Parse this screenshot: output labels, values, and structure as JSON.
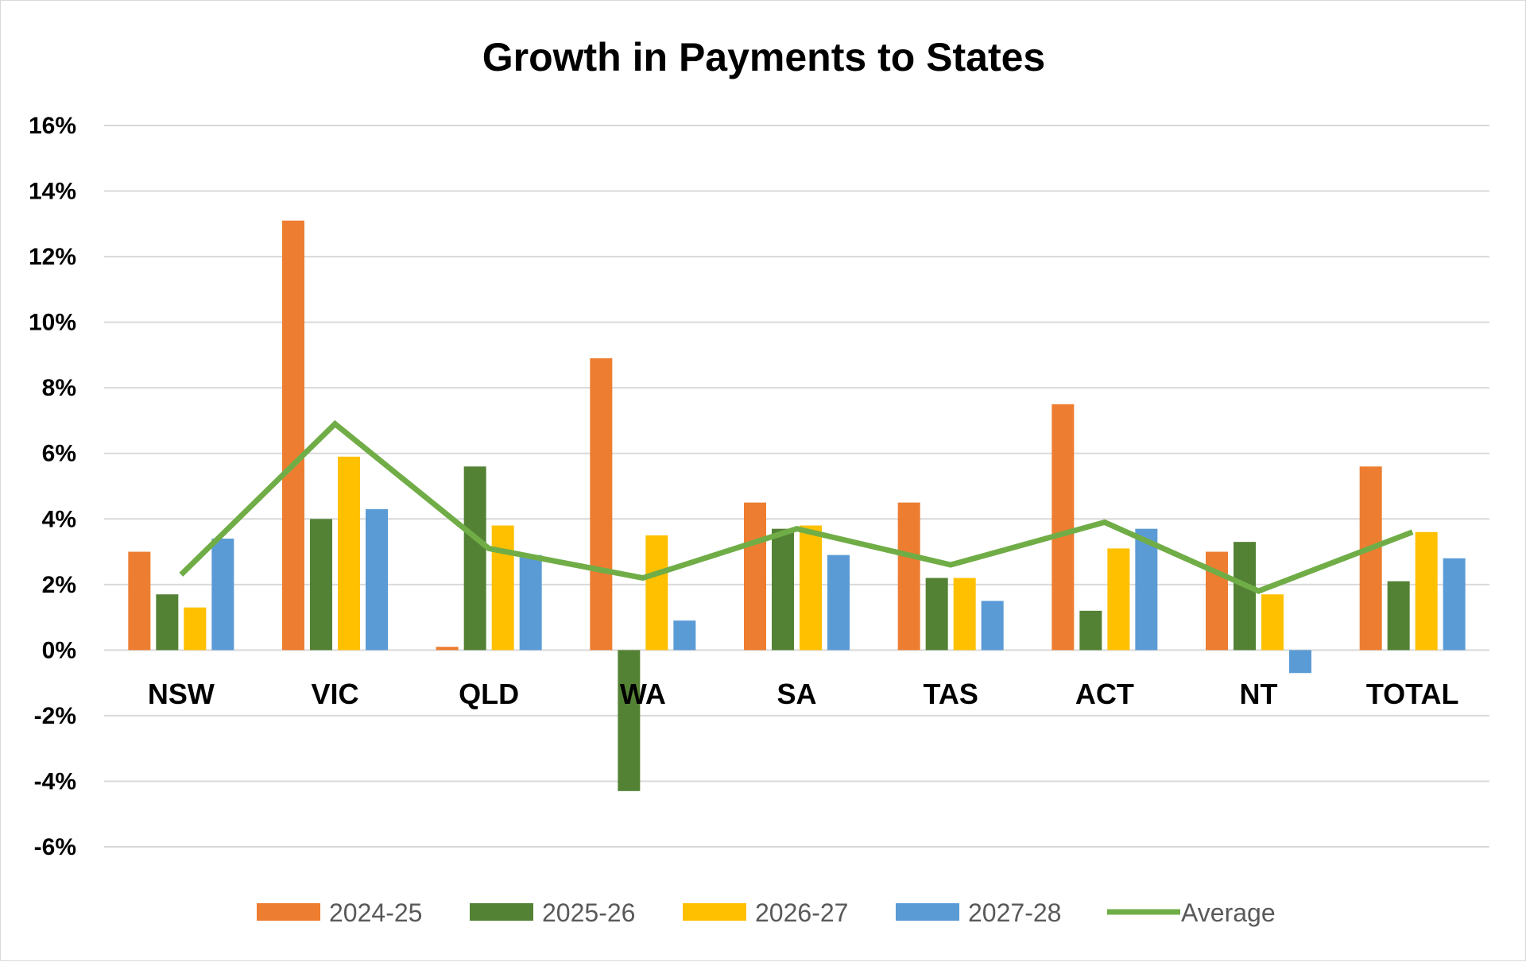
{
  "chart_data": {
    "type": "bar",
    "title": "Growth in Payments to States",
    "categories": [
      "NSW",
      "VIC",
      "QLD",
      "WA",
      "SA",
      "TAS",
      "ACT",
      "NT",
      "TOTAL"
    ],
    "series": [
      {
        "name": "2024-25",
        "color": "#ed7d31",
        "values": [
          3.0,
          13.1,
          0.1,
          8.9,
          4.5,
          4.5,
          7.5,
          3.0,
          5.6
        ]
      },
      {
        "name": "2025-26",
        "color": "#548235",
        "values": [
          1.7,
          4.0,
          5.6,
          -4.3,
          3.7,
          2.2,
          1.2,
          3.3,
          2.1
        ]
      },
      {
        "name": "2026-27",
        "color": "#ffc000",
        "values": [
          1.3,
          5.9,
          3.8,
          3.5,
          3.8,
          2.2,
          3.1,
          1.7,
          3.6
        ]
      },
      {
        "name": "2027-28",
        "color": "#5b9bd5",
        "values": [
          3.4,
          4.3,
          2.9,
          0.9,
          2.9,
          1.5,
          3.7,
          -0.7,
          2.8
        ]
      }
    ],
    "line_series": {
      "name": "Average",
      "color": "#70ad47",
      "values": [
        2.3,
        6.9,
        3.1,
        2.2,
        3.7,
        2.6,
        3.9,
        1.8,
        3.6
      ]
    },
    "ylim": [
      -6,
      16
    ],
    "yticks": [
      16,
      14,
      12,
      10,
      8,
      6,
      4,
      2,
      0,
      -2,
      -4,
      -6
    ],
    "ytick_labels": [
      "16%",
      "14%",
      "12%",
      "10%",
      "8%",
      "6%",
      "4%",
      "2%",
      "0%",
      "-2%",
      "-4%",
      "-6%"
    ],
    "xlabel": "",
    "ylabel": "",
    "grid": true,
    "legend_position": "bottom"
  }
}
